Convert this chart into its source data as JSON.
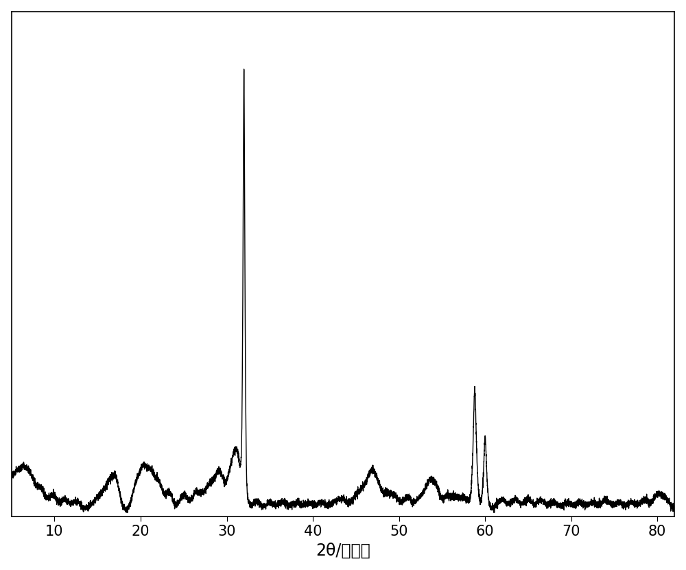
{
  "xlabel": "2θ/衍射角",
  "xlim": [
    5,
    82
  ],
  "ylim": [
    0,
    1.05
  ],
  "xticks": [
    10,
    20,
    30,
    40,
    50,
    60,
    70,
    80
  ],
  "line_color": "#000000",
  "line_width": 1.0,
  "background_color": "#ffffff",
  "xlabel_fontsize": 17,
  "tick_fontsize": 15,
  "figsize": [
    10.0,
    8.31
  ],
  "dpi": 100
}
